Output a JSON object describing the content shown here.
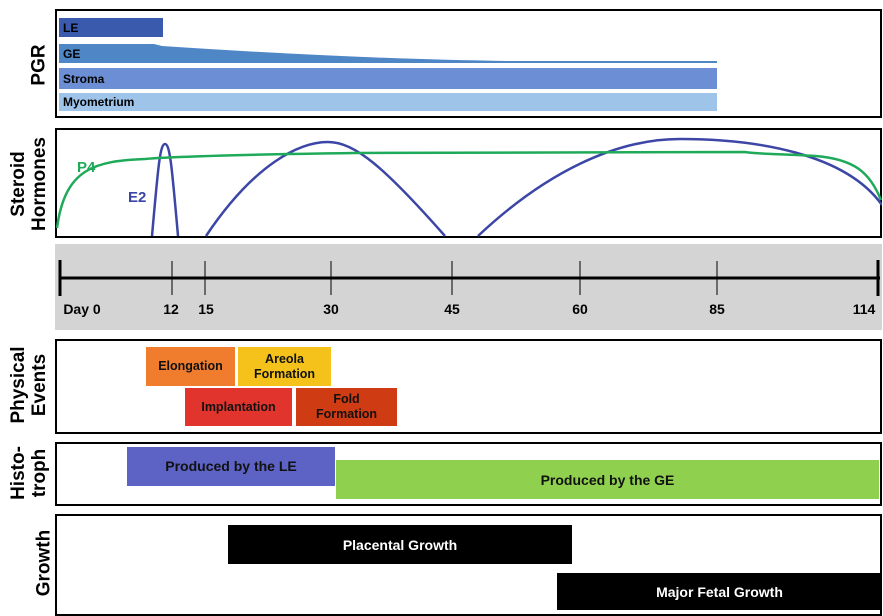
{
  "pgr": {
    "title": "PGR",
    "bars": [
      {
        "label": "LE",
        "color": "#3a5aad"
      },
      {
        "label": "GE",
        "color": "#4e86c6"
      },
      {
        "label": "Stroma",
        "color": "#6b8ed4"
      },
      {
        "label": "Myometrium",
        "color": "#9fc4ea"
      }
    ]
  },
  "hormones": {
    "title_line1": "Steroid",
    "title_line2": "Hormones",
    "p4_label": "P4",
    "e2_label": "E2",
    "p4_color": "#1faa59",
    "e2_color": "#3c46a6"
  },
  "timeline": {
    "ticks": [
      "Day 0",
      "12",
      "15",
      "30",
      "45",
      "60",
      "85",
      "114"
    ]
  },
  "physical": {
    "title_line1": "Physical",
    "title_line2": "Events",
    "events": [
      {
        "label": "Elongation",
        "color": "#ef7d2d"
      },
      {
        "label": "Areola Formation",
        "color": "#f4c21b"
      },
      {
        "label": "Implantation",
        "color": "#e0342c"
      },
      {
        "label": "Fold Formation",
        "color": "#cf3b12"
      }
    ]
  },
  "histotroph": {
    "title_line1": "Histo-",
    "title_line2": "troph",
    "le_label": "Produced by the LE",
    "ge_label": "Produced by the GE",
    "le_color": "#5d63c4",
    "ge_color": "#8fd14f"
  },
  "growth": {
    "title": "Growth",
    "placental_label": "Placental Growth",
    "fetal_label": "Major Fetal Growth"
  }
}
